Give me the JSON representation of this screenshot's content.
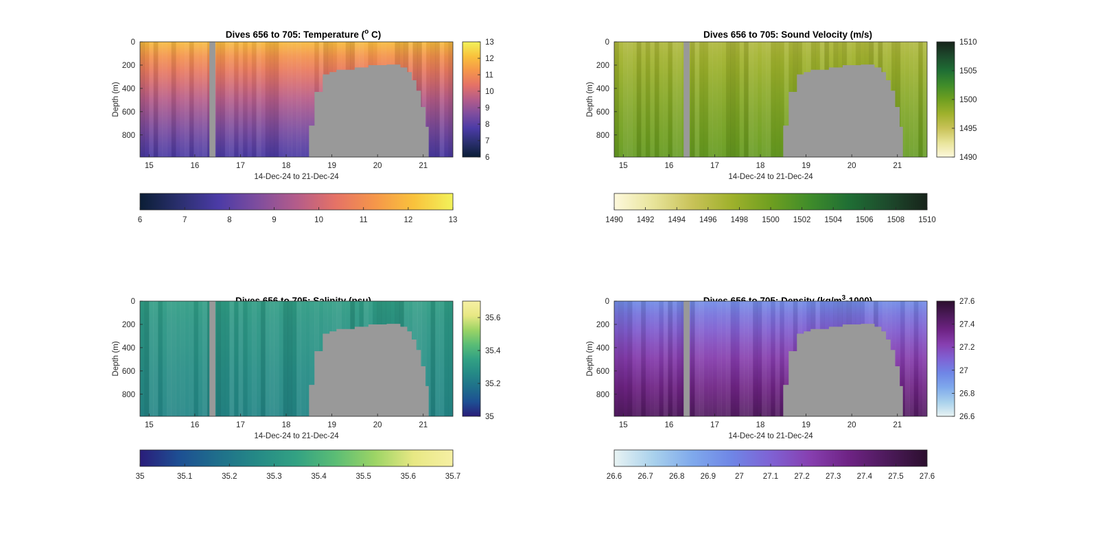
{
  "chart_data": [
    {
      "type": "heatmap",
      "title": "Dives 656 to 705: Temperature (",
      "title_sup": "o",
      "title_end": " C)",
      "xlabel": "14-Dec-24 to 21-Dec-24",
      "ylabel": "Depth (m)",
      "xlim": [
        14.8,
        21.65
      ],
      "ylim": [
        0,
        990
      ],
      "x_ticks": [
        15,
        16,
        17,
        18,
        19,
        20,
        21
      ],
      "y_ticks": [
        0,
        200,
        400,
        600,
        800
      ],
      "surface_value": 12.0,
      "deep_value": 7.7,
      "colorbar": {
        "min": 6,
        "max": 13,
        "ticks": [
          13,
          12,
          11,
          10,
          9,
          8,
          7,
          6
        ],
        "horizontal_ticks": [
          6,
          7,
          8,
          9,
          10,
          11,
          12,
          13
        ]
      },
      "colors": [
        "#0b1e36",
        "#2a2f6e",
        "#4b3ba6",
        "#7e4d9e",
        "#b45c8a",
        "#e57266",
        "#f5964a",
        "#f9c23c",
        "#f2f25a"
      ]
    },
    {
      "type": "heatmap",
      "title": "Dives 656 to 705: Sound Velocity (m/s)",
      "xlabel": "14-Dec-24 to 21-Dec-24",
      "ylabel": "Depth (m)",
      "xlim": [
        14.8,
        21.65
      ],
      "ylim": [
        0,
        990
      ],
      "x_ticks": [
        15,
        16,
        17,
        18,
        19,
        20,
        21
      ],
      "y_ticks": [
        0,
        200,
        400,
        600,
        800
      ],
      "surface_value": 1496.5,
      "deep_value": 1500.5,
      "colorbar": {
        "min": 1490,
        "max": 1510,
        "ticks": [
          1510,
          1505,
          1500,
          1495,
          1490
        ],
        "horizontal_ticks": [
          1490,
          1492,
          1494,
          1496,
          1498,
          1500,
          1502,
          1504,
          1506,
          1508,
          1510
        ]
      },
      "colors": [
        "#fdf8dc",
        "#e8e49a",
        "#c8c258",
        "#9fb12c",
        "#6f9f20",
        "#3f8c2a",
        "#1f6e34",
        "#1d4a2c",
        "#17231a"
      ]
    },
    {
      "type": "heatmap",
      "title": "Dives 656 to 705: Salinity (psu)",
      "xlabel": "14-Dec-24 to 21-Dec-24",
      "ylabel": "Depth (m)",
      "xlim": [
        14.8,
        21.65
      ],
      "ylim": [
        0,
        990
      ],
      "x_ticks": [
        15,
        16,
        17,
        18,
        19,
        20,
        21
      ],
      "y_ticks": [
        0,
        200,
        400,
        600,
        800
      ],
      "surface_value": 35.33,
      "deep_value": 35.25,
      "colorbar": {
        "min": 35,
        "max": 35.7,
        "ticks": [
          35.6,
          35.4,
          35.2,
          35
        ],
        "horizontal_ticks": [
          35,
          35.1,
          35.2,
          35.3,
          35.4,
          35.5,
          35.6,
          35.7
        ]
      },
      "colors": [
        "#2a1d7a",
        "#1d4f93",
        "#1f6f8b",
        "#258a86",
        "#33a283",
        "#5bbd75",
        "#9cd465",
        "#e8e884",
        "#f6f0a4"
      ]
    },
    {
      "type": "heatmap",
      "title": "Dives 656 to 705: Density (kg/m",
      "title_sup": "3",
      "title_end": "-1000)",
      "xlabel": "14-Dec-24 to 21-Dec-24",
      "ylabel": "Depth (m)",
      "xlim": [
        14.8,
        21.65
      ],
      "ylim": [
        0,
        990
      ],
      "x_ticks": [
        15,
        16,
        17,
        18,
        19,
        20,
        21
      ],
      "y_ticks": [
        0,
        200,
        400,
        600,
        800
      ],
      "surface_value": 26.95,
      "deep_value": 27.45,
      "colorbar": {
        "min": 26.6,
        "max": 27.6,
        "ticks": [
          27.6,
          27.4,
          27.2,
          27,
          26.8,
          26.6
        ],
        "horizontal_ticks": [
          26.6,
          26.7,
          26.8,
          26.9,
          27,
          27.1,
          27.2,
          27.3,
          27.4,
          27.5,
          27.6
        ]
      },
      "colors": [
        "#e8f3f3",
        "#a9d1ec",
        "#7fa9ec",
        "#6f86e6",
        "#7f62d4",
        "#873fb0",
        "#6e2384",
        "#4c1a5a",
        "#2c0f2e"
      ]
    }
  ],
  "mask": {
    "gap_x": [
      16.32,
      16.45
    ],
    "seafloor": [
      [
        18.5,
        720
      ],
      [
        18.62,
        430
      ],
      [
        18.8,
        280
      ],
      [
        18.95,
        260
      ],
      [
        19.1,
        240
      ],
      [
        19.5,
        220
      ],
      [
        19.8,
        200
      ],
      [
        20.2,
        195
      ],
      [
        20.5,
        220
      ],
      [
        20.65,
        260
      ],
      [
        20.75,
        330
      ],
      [
        20.85,
        420
      ],
      [
        20.95,
        560
      ],
      [
        21.05,
        730
      ],
      [
        21.12,
        990
      ]
    ],
    "seafloor_end_x": 21.12
  },
  "colors": {
    "nodata": "#999999",
    "axis": "#262626"
  }
}
